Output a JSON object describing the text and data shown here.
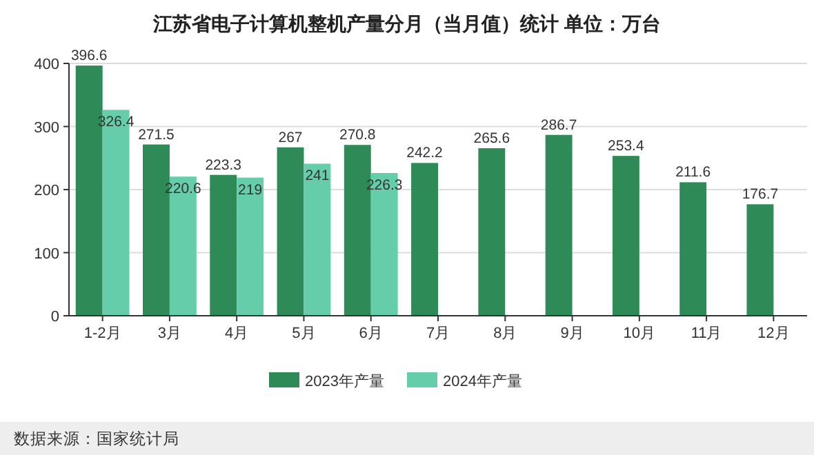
{
  "chart_data": {
    "type": "bar",
    "title": "江苏省电子计算机整机产量分月（当月值）统计  单位：万台",
    "categories": [
      "1-2月",
      "3月",
      "4月",
      "5月",
      "6月",
      "7月",
      "8月",
      "9月",
      "10月",
      "11月",
      "12月"
    ],
    "series": [
      {
        "name": "2023年产量",
        "color": "#2e8b57",
        "values": [
          396.6,
          271.5,
          223.3,
          267,
          270.8,
          242.2,
          265.6,
          286.7,
          253.4,
          211.6,
          176.7
        ]
      },
      {
        "name": "2024年产量",
        "color": "#66cdaa",
        "values": [
          326.4,
          220.6,
          219,
          241,
          226.3,
          null,
          null,
          null,
          null,
          null,
          null
        ]
      }
    ],
    "ylim": [
      0,
      400
    ],
    "yticks": [
      0,
      100,
      200,
      300,
      400
    ],
    "grid": "y",
    "legend": "bottom",
    "data_labels": true,
    "annotations": [
      "数据来源：国家统计局"
    ]
  }
}
